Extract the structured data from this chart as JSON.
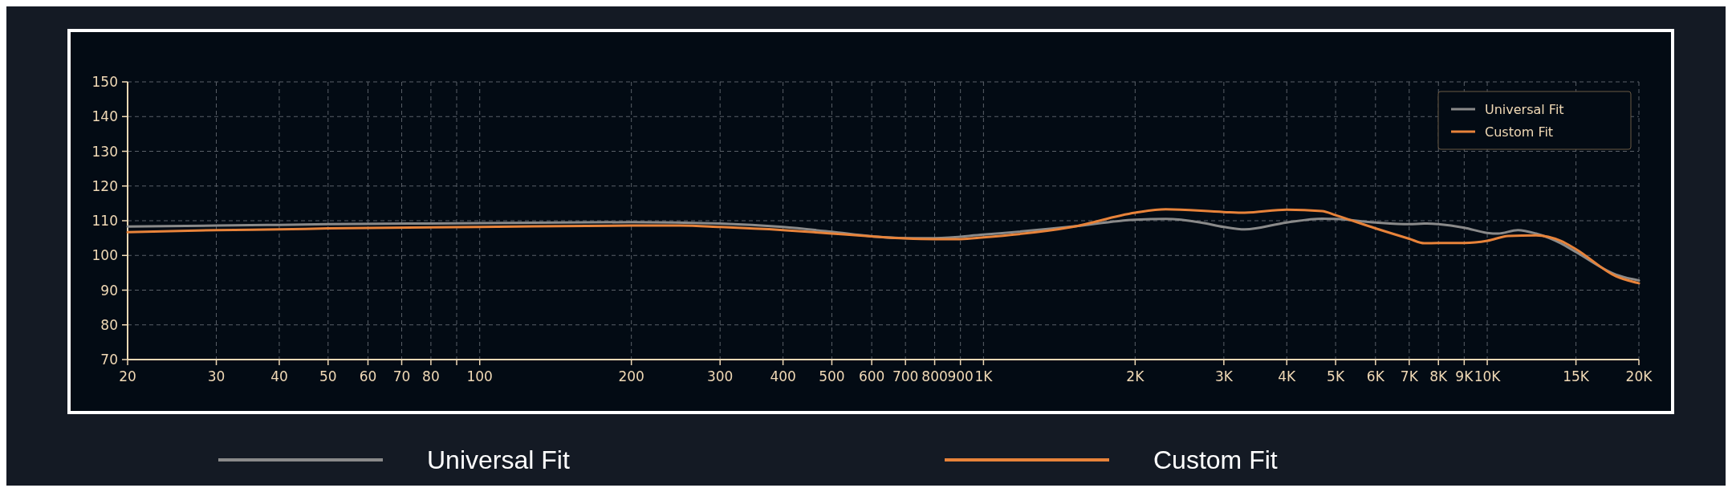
{
  "chart_data": {
    "type": "line",
    "log": "x",
    "xlim": [
      20,
      20000
    ],
    "ylim": [
      70,
      150
    ],
    "xticks": [
      20,
      30,
      40,
      50,
      60,
      70,
      80,
      {
        "value": 90,
        "label": null
      },
      100,
      200,
      300,
      400,
      500,
      600,
      700,
      800,
      900,
      {
        "value": 1000,
        "label": "1K"
      },
      {
        "value": 2000,
        "label": "2K"
      },
      {
        "value": 3000,
        "label": "3K"
      },
      {
        "value": 4000,
        "label": "4K"
      },
      {
        "value": 5000,
        "label": "5K"
      },
      {
        "value": 6000,
        "label": "6K"
      },
      {
        "value": 7000,
        "label": "7K"
      },
      {
        "value": 8000,
        "label": "8K"
      },
      {
        "value": 9000,
        "label": "9K"
      },
      {
        "value": 10000,
        "label": "10K"
      },
      {
        "value": 15000,
        "label": "15K"
      },
      {
        "value": 20000,
        "label": "20K"
      }
    ],
    "yticks": [
      70,
      80,
      90,
      100,
      110,
      120,
      130,
      140,
      150
    ],
    "grid": true,
    "legend": "top right",
    "marker": "none",
    "line_style": "solid",
    "series": [
      {
        "name": "Universal Fit",
        "color": "#8a8a8a",
        "x": [
          20,
          30,
          40,
          50,
          100,
          200,
          300,
          400,
          500,
          600,
          700,
          800,
          1000,
          1500,
          2000,
          2300,
          2700,
          3000,
          3300,
          4000,
          4700,
          5000,
          6000,
          7000,
          7500,
          8000,
          9000,
          10000,
          10500,
          11500,
          12500,
          14000,
          15000,
          18000,
          20000
        ],
        "values": [
          108.3,
          108.6,
          108.8,
          109,
          109.3,
          109.6,
          109.2,
          108.2,
          106.8,
          105.5,
          105,
          105,
          106,
          108.3,
          110.3,
          110.5,
          109.5,
          108.2,
          107.5,
          109.5,
          110.6,
          110.5,
          109.5,
          109,
          109.2,
          109,
          108,
          106.5,
          106.3,
          107.3,
          106.3,
          103.5,
          101,
          94.5,
          92.8
        ]
      },
      {
        "name": "Custom Fit",
        "color": "#e8833a",
        "x": [
          20,
          30,
          40,
          50,
          100,
          200,
          250,
          300,
          400,
          500,
          600,
          700,
          800,
          900,
          1000,
          1500,
          2000,
          2300,
          3000,
          3300,
          4000,
          4700,
          5000,
          6000,
          7000,
          7500,
          8000,
          9000,
          10000,
          11000,
          12500,
          14000,
          15000,
          18000,
          20000
        ],
        "values": [
          106.7,
          107.3,
          107.5,
          107.8,
          108.2,
          108.6,
          108.6,
          108.2,
          107.3,
          106.3,
          105.5,
          104.9,
          104.7,
          104.7,
          105.2,
          108.2,
          112.3,
          113.3,
          112.5,
          112.3,
          113.2,
          112.8,
          111.6,
          107.8,
          104.8,
          103.5,
          103.6,
          103.6,
          104.2,
          105.6,
          105.8,
          104.2,
          101.8,
          94,
          92
        ]
      }
    ]
  }
}
